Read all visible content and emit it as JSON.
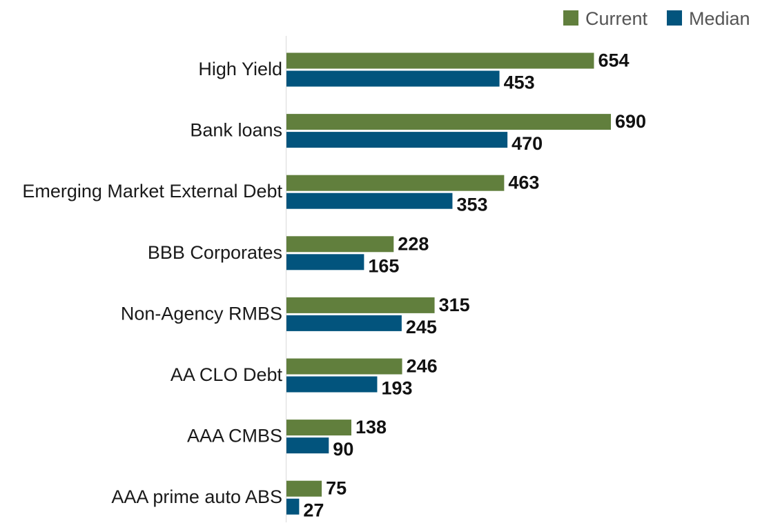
{
  "chart_data": {
    "type": "bar",
    "orientation": "horizontal",
    "title": "",
    "xlabel": "",
    "ylabel": "",
    "categories": [
      "High Yield",
      "Bank loans",
      "Emerging Market External Debt",
      "BBB Corporates",
      "Non-Agency RMBS",
      "AA CLO Debt",
      "AAA CMBS",
      "AAA prime auto ABS"
    ],
    "series": [
      {
        "name": "Current",
        "color": "#617F3D",
        "values": [
          654,
          690,
          463,
          228,
          315,
          246,
          138,
          75
        ]
      },
      {
        "name": "Median",
        "color": "#02547D",
        "values": [
          453,
          470,
          353,
          165,
          245,
          193,
          90,
          27
        ]
      }
    ],
    "xlim": [
      0,
      700
    ],
    "grid": false,
    "data_labels": true,
    "legend": {
      "position": "top-right",
      "entries": [
        "Current",
        "Median"
      ]
    }
  }
}
